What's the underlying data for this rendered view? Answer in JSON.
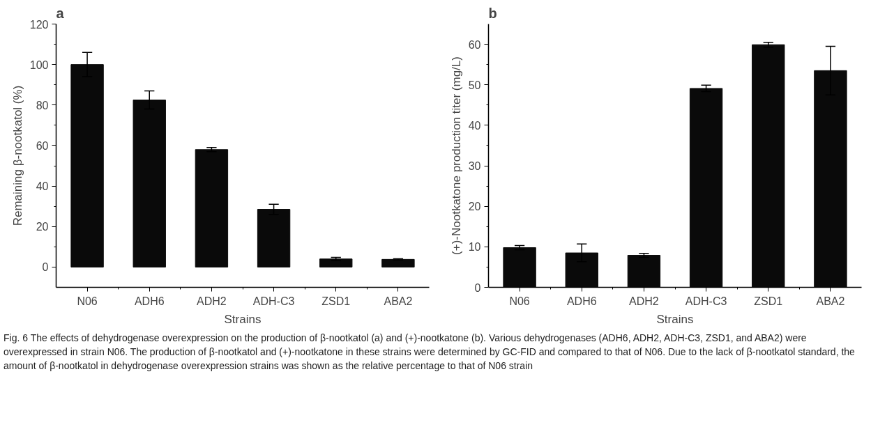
{
  "chart_data": [
    {
      "type": "bar",
      "title": "a",
      "xlabel": "Strains",
      "ylabel": "Remaining β-nootkatol (%)",
      "categories": [
        "N06",
        "ADH6",
        "ADH2",
        "ADH-C3",
        "ZSD1",
        "ABA2"
      ],
      "values": [
        100,
        82.5,
        58,
        28.5,
        4,
        3.8
      ],
      "errors": [
        6,
        4.5,
        1,
        2.5,
        0.8,
        0.3
      ],
      "color": "#0a0a0a",
      "ylim": [
        -10,
        120
      ],
      "yticks": [
        0,
        20,
        40,
        60,
        80,
        100,
        120
      ],
      "grid": false,
      "annotations": [
        "Fig. 6  The effects of dehydrogenase overexpression on the production of β-nootkatol (a) and (+)-nootkatone (b). Various dehydrogenases (ADH6, ADH2, ADH-C3, ZSD1, and ABA2) were overexpressed in strain N06. The production of β-nootkatol and (+)-nootkatone in these strains were determined by GC-FID and compared to that of N06. Due to the lack of β-nootkatol standard, the amount of β-nootkatol in dehydrogenase overexpression strains was shown as the relative percentage to that of N06 strain"
      ]
    },
    {
      "type": "bar",
      "title": "b",
      "xlabel": "Strains",
      "ylabel": "(+)-Nootkatone production titer (mg/L)",
      "categories": [
        "N06",
        "ADH6",
        "ADH2",
        "ADH-C3",
        "ZSD1",
        "ABA2"
      ],
      "values": [
        9.8,
        8.5,
        7.9,
        49.1,
        59.9,
        53.5
      ],
      "errors": [
        0.5,
        2.2,
        0.5,
        0.8,
        0.6,
        6
      ],
      "color": "#0a0a0a",
      "ylim": [
        0,
        65
      ],
      "yticks": [
        0,
        10,
        20,
        30,
        40,
        50,
        60
      ],
      "grid": false
    }
  ]
}
